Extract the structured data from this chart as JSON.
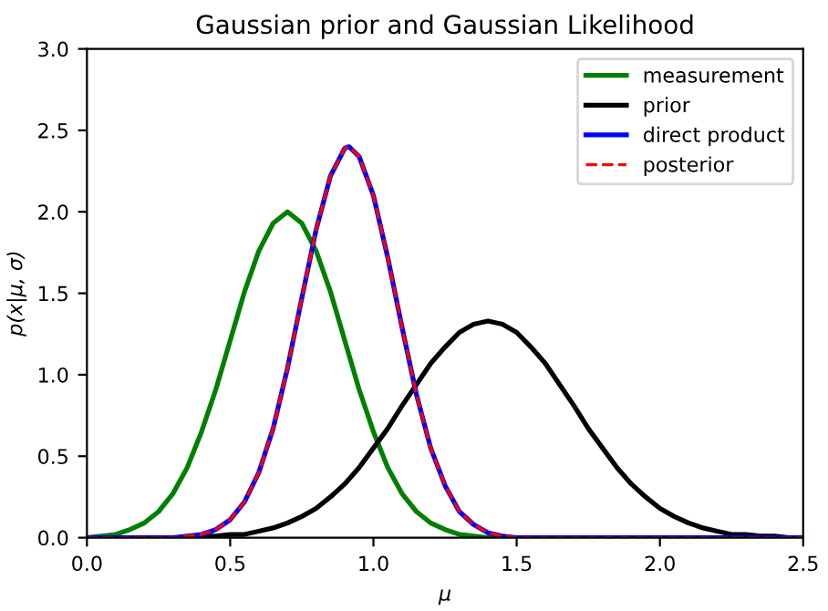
{
  "chart_data": {
    "type": "line",
    "title": "Gaussian prior and Gaussian Likelihood",
    "xlabel": "μ",
    "ylabel": "p(x|μ, σ)",
    "xlim": [
      0,
      2.5
    ],
    "ylim": [
      0,
      3.0
    ],
    "xticks": [
      {
        "value": 0,
        "label": "0.0"
      },
      {
        "value": 0.5,
        "label": "0.5"
      },
      {
        "value": 1.0,
        "label": "1.0"
      },
      {
        "value": 1.5,
        "label": "1.5"
      },
      {
        "value": 2.0,
        "label": "2.0"
      },
      {
        "value": 2.5,
        "label": "2.5"
      }
    ],
    "yticks": [
      {
        "value": 0,
        "label": "0.0"
      },
      {
        "value": 0.5,
        "label": "0.5"
      },
      {
        "value": 1.0,
        "label": "1.0"
      },
      {
        "value": 1.5,
        "label": "1.5"
      },
      {
        "value": 2.0,
        "label": "2.0"
      },
      {
        "value": 2.5,
        "label": "2.5"
      },
      {
        "value": 3.0,
        "label": "3.0"
      }
    ],
    "legend": "top right",
    "grid": false,
    "marker": "none",
    "series": [
      {
        "name": "measurement",
        "color": "#008000",
        "line_style": "solid",
        "x": [
          0,
          0.05,
          0.1,
          0.15,
          0.2,
          0.25,
          0.3,
          0.35,
          0.4,
          0.45,
          0.5,
          0.55,
          0.6,
          0.65,
          0.7,
          0.75,
          0.8,
          0.85,
          0.9,
          0.95,
          1.0,
          1.05,
          1.1,
          1.15,
          1.2,
          1.25,
          1.3,
          1.35,
          1.4,
          1.45
        ],
        "values": [
          0.0,
          0.01,
          0.02,
          0.05,
          0.09,
          0.16,
          0.27,
          0.43,
          0.65,
          0.91,
          1.21,
          1.51,
          1.76,
          1.93,
          2.0,
          1.93,
          1.76,
          1.51,
          1.21,
          0.91,
          0.65,
          0.43,
          0.27,
          0.16,
          0.09,
          0.05,
          0.02,
          0.01,
          0.0,
          0.0
        ]
      },
      {
        "name": "prior",
        "color": "#000000",
        "line_style": "solid",
        "x": [
          0,
          0.3,
          0.35,
          0.4,
          0.45,
          0.5,
          0.55,
          0.6,
          0.65,
          0.7,
          0.75,
          0.8,
          0.85,
          0.9,
          0.95,
          1.0,
          1.05,
          1.1,
          1.15,
          1.2,
          1.25,
          1.3,
          1.35,
          1.4,
          1.45,
          1.5,
          1.55,
          1.6,
          1.65,
          1.7,
          1.75,
          1.8,
          1.85,
          1.9,
          1.95,
          2.0,
          2.05,
          2.1,
          2.15,
          2.2,
          2.25,
          2.3,
          2.35,
          2.4,
          2.45,
          2.5
        ],
        "values": [
          0.0,
          0.0,
          0.0,
          0.01,
          0.01,
          0.02,
          0.02,
          0.04,
          0.06,
          0.09,
          0.13,
          0.18,
          0.25,
          0.33,
          0.43,
          0.55,
          0.67,
          0.81,
          0.94,
          1.07,
          1.17,
          1.26,
          1.31,
          1.33,
          1.31,
          1.26,
          1.17,
          1.07,
          0.94,
          0.81,
          0.67,
          0.55,
          0.43,
          0.33,
          0.25,
          0.18,
          0.13,
          0.09,
          0.06,
          0.04,
          0.02,
          0.02,
          0.01,
          0.01,
          0.0,
          0.0
        ]
      },
      {
        "name": "direct product",
        "color": "#0000ff",
        "line_style": "solid",
        "x": [
          0,
          0.25,
          0.3,
          0.35,
          0.4,
          0.45,
          0.5,
          0.55,
          0.6,
          0.65,
          0.7,
          0.75,
          0.8,
          0.85,
          0.9,
          0.915,
          0.95,
          1.0,
          1.05,
          1.1,
          1.15,
          1.2,
          1.25,
          1.3,
          1.35,
          1.4,
          1.45,
          1.5,
          2.5
        ],
        "values": [
          0.0,
          0.0,
          0.0,
          0.01,
          0.02,
          0.05,
          0.11,
          0.22,
          0.4,
          0.67,
          1.04,
          1.47,
          1.89,
          2.22,
          2.39,
          2.4,
          2.34,
          2.1,
          1.72,
          1.29,
          0.88,
          0.55,
          0.32,
          0.16,
          0.08,
          0.03,
          0.01,
          0.0,
          0.0
        ]
      },
      {
        "name": "posterior",
        "color": "#ff0000",
        "line_style": "dashed",
        "x": [
          0,
          0.25,
          0.3,
          0.35,
          0.4,
          0.45,
          0.5,
          0.55,
          0.6,
          0.65,
          0.7,
          0.75,
          0.8,
          0.85,
          0.9,
          0.915,
          0.95,
          1.0,
          1.05,
          1.1,
          1.15,
          1.2,
          1.25,
          1.3,
          1.35,
          1.4,
          1.45,
          1.5,
          2.5
        ],
        "values": [
          0.0,
          0.0,
          0.0,
          0.01,
          0.02,
          0.05,
          0.11,
          0.22,
          0.4,
          0.67,
          1.04,
          1.47,
          1.89,
          2.22,
          2.39,
          2.4,
          2.34,
          2.1,
          1.72,
          1.29,
          0.88,
          0.55,
          0.32,
          0.16,
          0.08,
          0.03,
          0.01,
          0.0,
          0.0
        ]
      }
    ]
  }
}
